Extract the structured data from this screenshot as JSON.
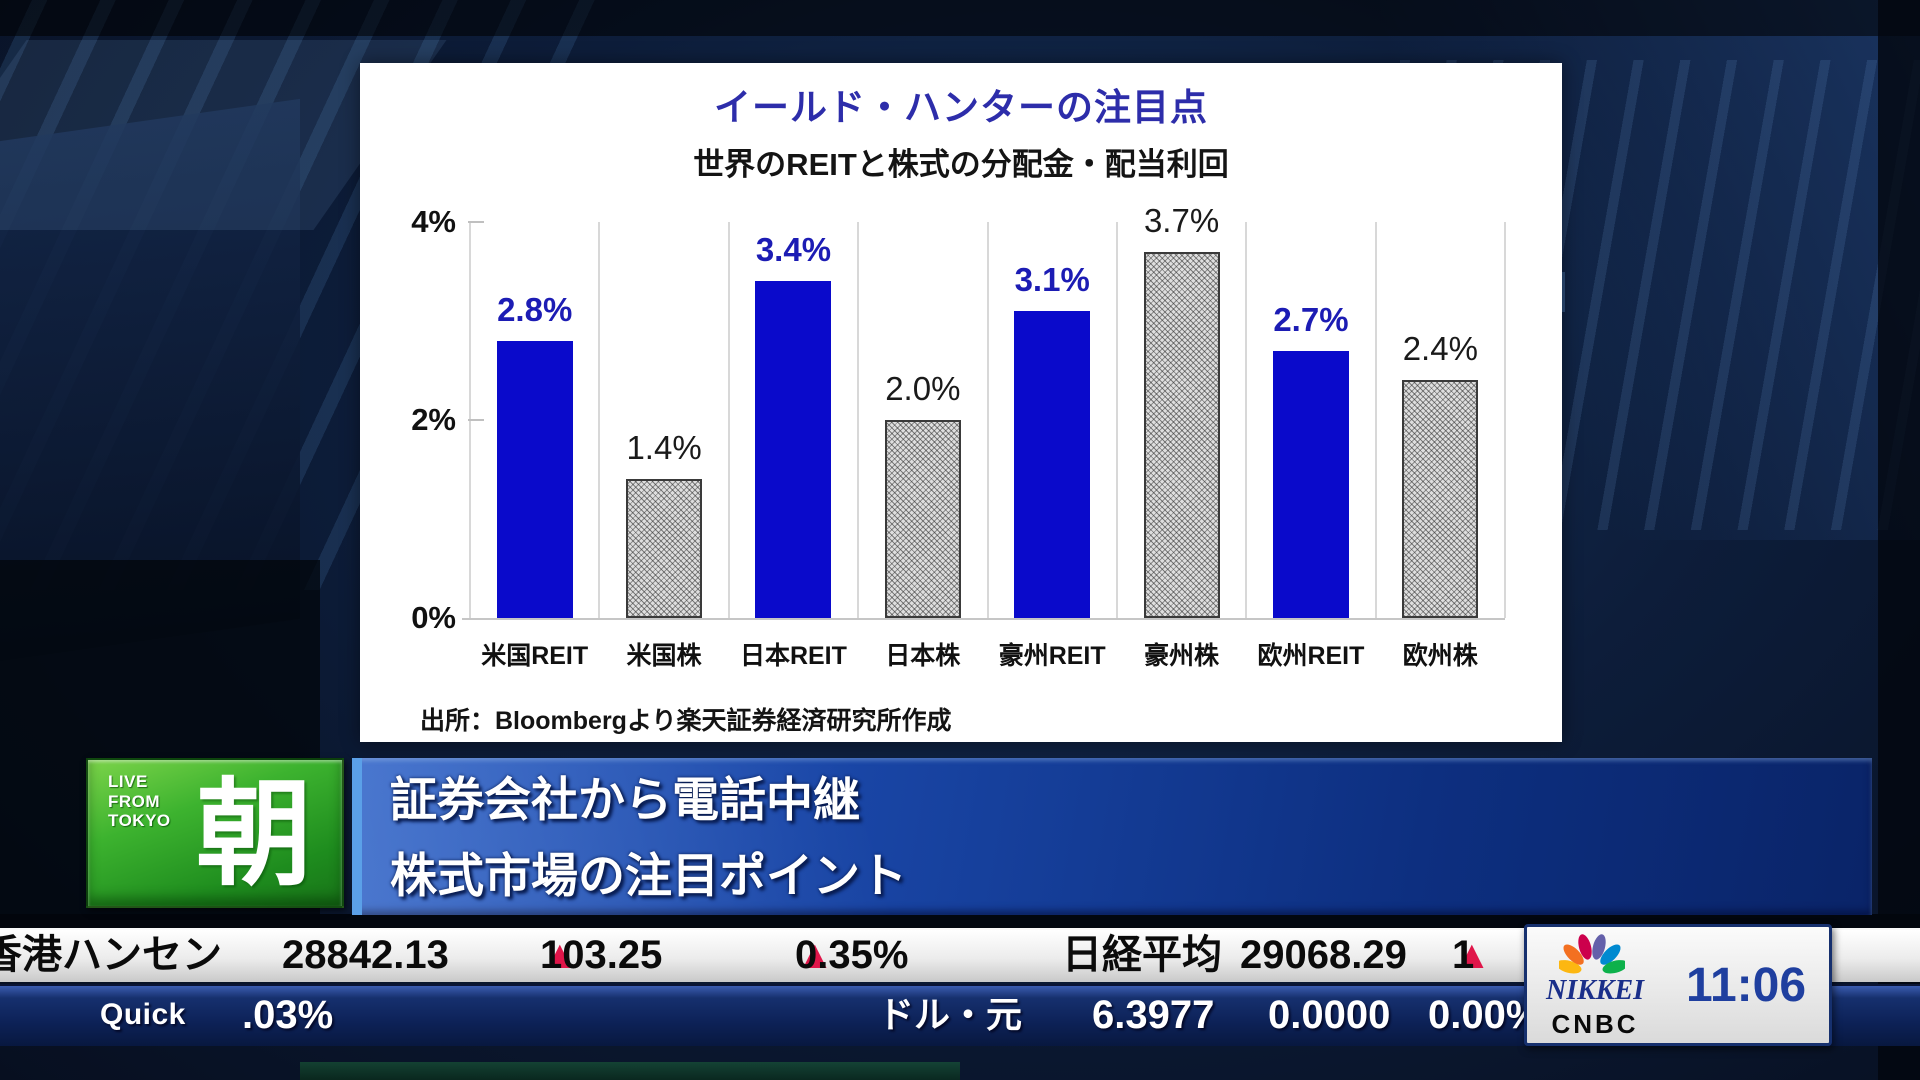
{
  "chart_data": {
    "type": "bar",
    "title": "イールド・ハンターの注目点",
    "subtitle": "世界のREITと株式の分配金・配当利回",
    "categories": [
      "米国REIT",
      "米国株",
      "日本REIT",
      "日本株",
      "豪州REIT",
      "豪州株",
      "欧州REIT",
      "欧州株"
    ],
    "values": [
      2.8,
      1.4,
      3.4,
      2.0,
      3.1,
      3.7,
      2.7,
      2.4
    ],
    "value_labels": [
      "2.8%",
      "1.4%",
      "3.4%",
      "2.0%",
      "3.1%",
      "3.7%",
      "2.7%",
      "2.4%"
    ],
    "series_type": [
      "reit",
      "stock",
      "reit",
      "stock",
      "reit",
      "stock",
      "reit",
      "stock"
    ],
    "ylim": [
      0,
      4
    ],
    "ytick_labels": [
      "4%",
      "2%",
      "0%"
    ],
    "legend": "none",
    "grid": "vertical category separators only",
    "source": "出所：Bloombergより楽天証券経済研究所作成",
    "colors": {
      "reit_bar": "#0a0acb",
      "reit_value_label": "#1c1cb4",
      "stock_bar": "gray-crosshatch",
      "stock_value_label": "#1a1a1a",
      "title": "#2d2daa"
    }
  },
  "live_badge": {
    "lines": [
      "LIVE",
      "FROM",
      "TOKYO"
    ],
    "kanji": "朝"
  },
  "headline": {
    "line1": "証券会社から電話中継",
    "line2": "株式市場の注目ポイント"
  },
  "ticker_top": {
    "hang_seng": {
      "name": "香港ハンセン",
      "price": "28842.13",
      "arrow": "▲",
      "change": "103.25",
      "change_pct": "0.35%"
    },
    "nikkei": {
      "name": "日経平均",
      "price": "29068.29",
      "arrow": "▲",
      "change_truncated": "1"
    }
  },
  "ticker_bottom": {
    "quick": {
      "brand": "Quick",
      "value": ".03%"
    },
    "usd_cny": {
      "name": "ドル・元",
      "price": "6.3977",
      "change": "0.0000",
      "change_pct": "0.00%"
    }
  },
  "station": {
    "network_top": "NIKKEI",
    "network_bottom": "CNBC",
    "clock": "11:06"
  },
  "colors": {
    "accent_red": "#e0164a",
    "banner_blue_light": "#2f63c8",
    "banner_blue_dark": "#0a2468",
    "live_green": "#2fa32d",
    "peacock": [
      "#fcb711",
      "#f37021",
      "#cc004c",
      "#6460aa",
      "#0089d0",
      "#0db14b"
    ]
  }
}
